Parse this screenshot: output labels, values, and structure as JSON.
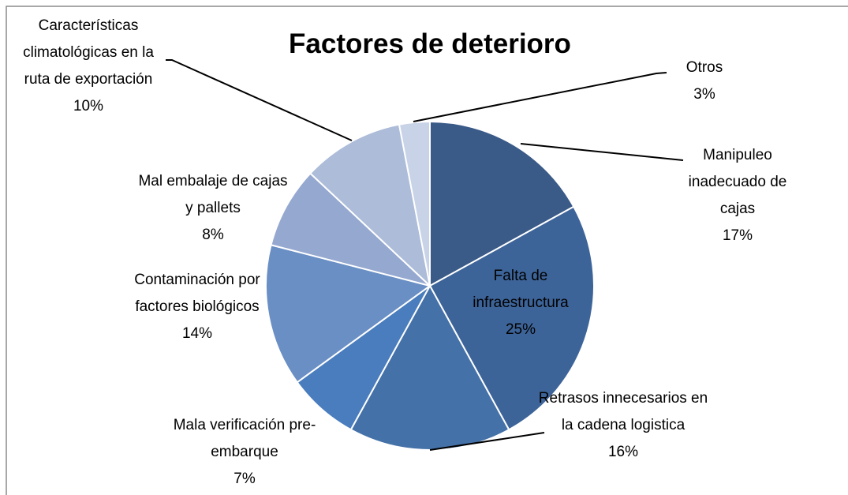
{
  "chart_data": {
    "type": "pie",
    "title": "Factores de deterioro",
    "categories": [
      "Manipuleo inadecuado de cajas",
      "Falta de infraestructura",
      "Retrasos innecesarios en la cadena logistica",
      "Mala verificación pre-embarque",
      "Contaminación por factores biológicos",
      "Mal embalaje de cajas y pallets",
      "Características climatológicas en la ruta de exportación",
      "Otros"
    ],
    "values": [
      17,
      25,
      16,
      7,
      14,
      8,
      10,
      3
    ],
    "value_labels": [
      "17%",
      "25%",
      "16%",
      "7%",
      "14%",
      "8%",
      "10%",
      "3%"
    ],
    "colors": [
      "#3a5a88",
      "#3d6499",
      "#4471a8",
      "#4a7dbd",
      "#6a8fc4",
      "#95a8d0",
      "#acbcd9",
      "#c9d3e8"
    ]
  }
}
